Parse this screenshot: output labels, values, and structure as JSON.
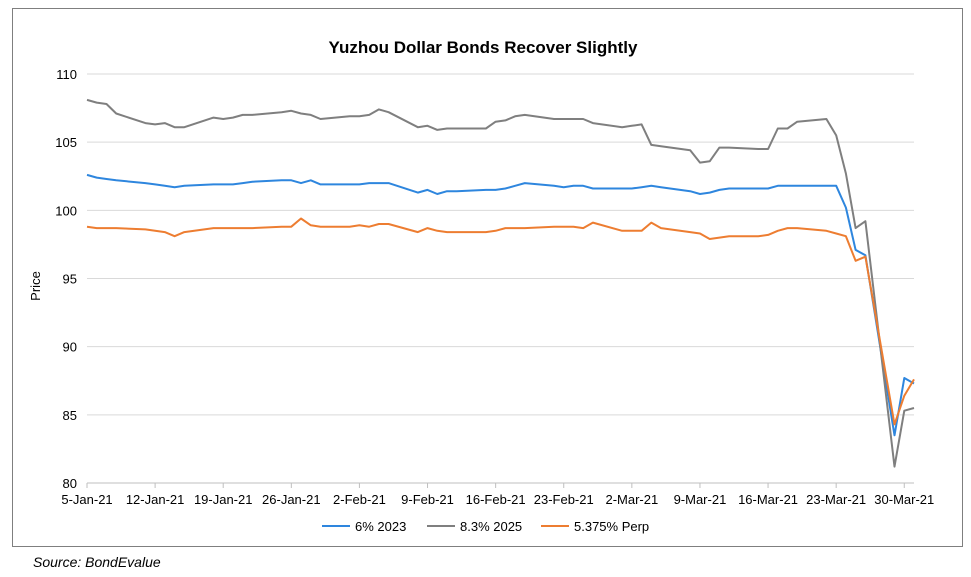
{
  "source_note": "Source: BondEvalue",
  "chart_data": {
    "type": "line",
    "title": "Yuzhou Dollar Bonds Recover Slightly",
    "xlabel": "",
    "ylabel": "Price",
    "ylim": [
      80,
      110
    ],
    "yticks": [
      80,
      85,
      90,
      95,
      100,
      105,
      110
    ],
    "xlim": [
      "2021-01-05",
      "2021-03-31"
    ],
    "xtick_labels": [
      "5-Jan-21",
      "12-Jan-21",
      "19-Jan-21",
      "26-Jan-21",
      "2-Feb-21",
      "9-Feb-21",
      "16-Feb-21",
      "23-Feb-21",
      "2-Mar-21",
      "9-Mar-21",
      "16-Mar-21",
      "23-Mar-21",
      "30-Mar-21"
    ],
    "xtick_dates": [
      "2021-01-05",
      "2021-01-12",
      "2021-01-19",
      "2021-01-26",
      "2021-02-02",
      "2021-02-09",
      "2021-02-16",
      "2021-02-23",
      "2021-03-02",
      "2021-03-09",
      "2021-03-16",
      "2021-03-23",
      "2021-03-30"
    ],
    "grid": "horizontal",
    "legend_position": "bottom",
    "x": [
      "2021-01-05",
      "2021-01-06",
      "2021-01-07",
      "2021-01-08",
      "2021-01-11",
      "2021-01-12",
      "2021-01-13",
      "2021-01-14",
      "2021-01-15",
      "2021-01-18",
      "2021-01-19",
      "2021-01-20",
      "2021-01-21",
      "2021-01-22",
      "2021-01-25",
      "2021-01-26",
      "2021-01-27",
      "2021-01-28",
      "2021-01-29",
      "2021-02-01",
      "2021-02-02",
      "2021-02-03",
      "2021-02-04",
      "2021-02-05",
      "2021-02-08",
      "2021-02-09",
      "2021-02-10",
      "2021-02-11",
      "2021-02-12",
      "2021-02-15",
      "2021-02-16",
      "2021-02-17",
      "2021-02-18",
      "2021-02-19",
      "2021-02-22",
      "2021-02-23",
      "2021-02-24",
      "2021-02-25",
      "2021-02-26",
      "2021-03-01",
      "2021-03-02",
      "2021-03-03",
      "2021-03-04",
      "2021-03-05",
      "2021-03-08",
      "2021-03-09",
      "2021-03-10",
      "2021-03-11",
      "2021-03-12",
      "2021-03-15",
      "2021-03-16",
      "2021-03-17",
      "2021-03-18",
      "2021-03-19",
      "2021-03-22",
      "2021-03-23",
      "2021-03-24",
      "2021-03-25",
      "2021-03-26",
      "2021-03-29",
      "2021-03-30",
      "2021-03-31"
    ],
    "series": [
      {
        "name": "6% 2023",
        "color": "#2e86de",
        "values": [
          102.6,
          102.4,
          102.3,
          102.2,
          102.0,
          101.9,
          101.8,
          101.7,
          101.8,
          101.9,
          101.9,
          101.9,
          102.0,
          102.1,
          102.2,
          102.2,
          102.0,
          102.2,
          101.9,
          101.9,
          101.9,
          102.0,
          102.0,
          102.0,
          101.3,
          101.5,
          101.2,
          101.4,
          101.4,
          101.5,
          101.5,
          101.6,
          101.8,
          102.0,
          101.8,
          101.7,
          101.8,
          101.8,
          101.6,
          101.6,
          101.6,
          101.7,
          101.8,
          101.7,
          101.4,
          101.2,
          101.3,
          101.5,
          101.6,
          101.6,
          101.6,
          101.8,
          101.8,
          101.8,
          101.8,
          101.8,
          100.2,
          97.1,
          96.7,
          83.5,
          87.7,
          87.3
        ]
      },
      {
        "name": "8.3% 2025",
        "color": "#7f7f7f",
        "values": [
          108.1,
          107.9,
          107.8,
          107.1,
          106.4,
          106.3,
          106.4,
          106.1,
          106.1,
          106.8,
          106.7,
          106.8,
          107.0,
          107.0,
          107.2,
          107.3,
          107.1,
          107.0,
          106.7,
          106.9,
          106.9,
          107.0,
          107.4,
          107.2,
          106.1,
          106.2,
          105.9,
          106.0,
          106.0,
          106.0,
          106.5,
          106.6,
          106.9,
          107.0,
          106.7,
          106.7,
          106.7,
          106.7,
          106.4,
          106.1,
          106.2,
          106.3,
          104.8,
          104.7,
          104.4,
          103.5,
          103.6,
          104.6,
          104.6,
          104.5,
          104.5,
          106.0,
          106.0,
          106.5,
          106.7,
          105.5,
          102.7,
          98.7,
          99.2,
          81.2,
          85.3,
          85.5
        ]
      },
      {
        "name": "5.375% Perp",
        "color": "#ed7d31",
        "values": [
          98.8,
          98.7,
          98.7,
          98.7,
          98.6,
          98.5,
          98.4,
          98.1,
          98.4,
          98.7,
          98.7,
          98.7,
          98.7,
          98.7,
          98.8,
          98.8,
          99.4,
          98.9,
          98.8,
          98.8,
          98.9,
          98.8,
          99.0,
          99.0,
          98.4,
          98.7,
          98.5,
          98.4,
          98.4,
          98.4,
          98.5,
          98.7,
          98.7,
          98.7,
          98.8,
          98.8,
          98.8,
          98.7,
          99.1,
          98.5,
          98.5,
          98.5,
          99.1,
          98.7,
          98.4,
          98.3,
          97.9,
          98.0,
          98.1,
          98.1,
          98.2,
          98.5,
          98.7,
          98.7,
          98.5,
          98.3,
          98.1,
          96.3,
          96.6,
          84.3,
          86.4,
          87.6
        ]
      }
    ]
  }
}
